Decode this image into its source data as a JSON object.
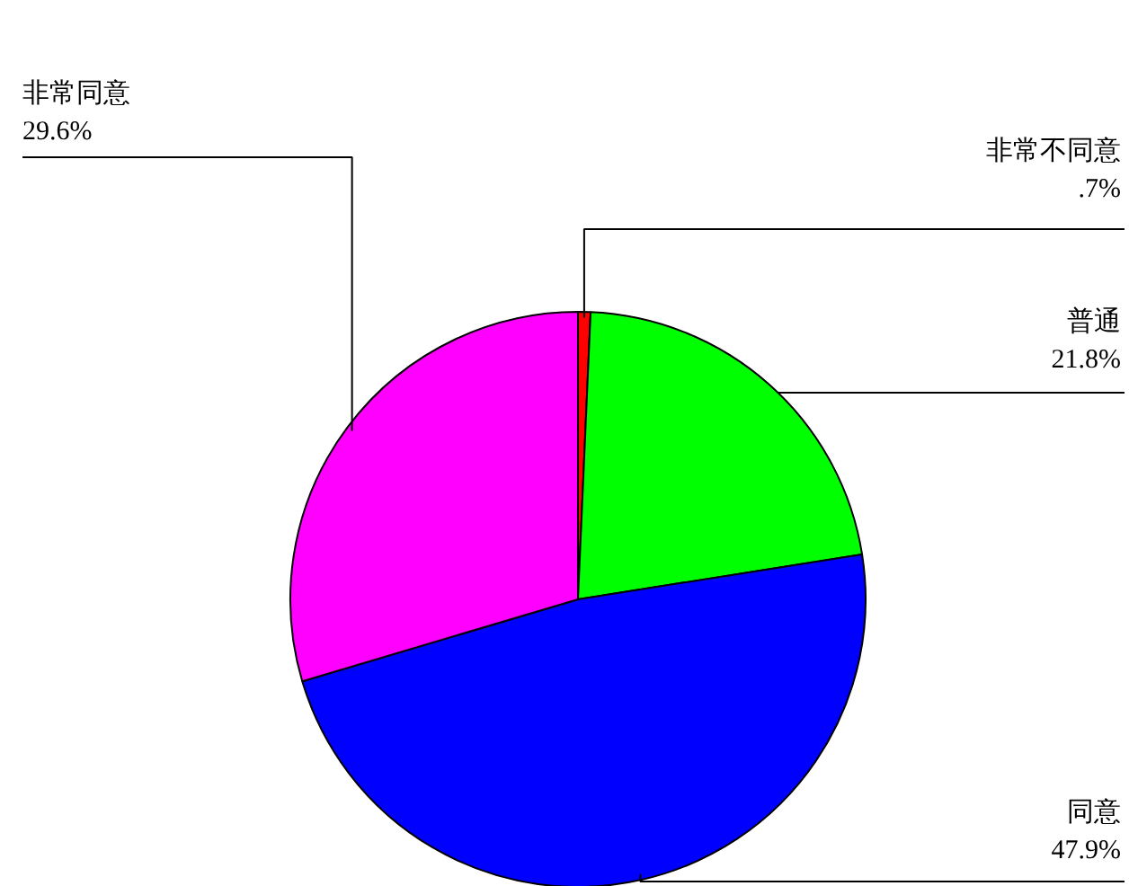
{
  "chart_data": {
    "type": "pie",
    "categories": [
      "非常不同意",
      "普通",
      "同意",
      "非常同意"
    ],
    "values": [
      0.7,
      21.8,
      47.9,
      29.6
    ],
    "colors": [
      "#ff0000",
      "#00ff00",
      "#0000ff",
      "#ff00ff"
    ],
    "value_labels": [
      ".7%",
      "21.8%",
      "47.9%",
      "29.6%"
    ]
  }
}
